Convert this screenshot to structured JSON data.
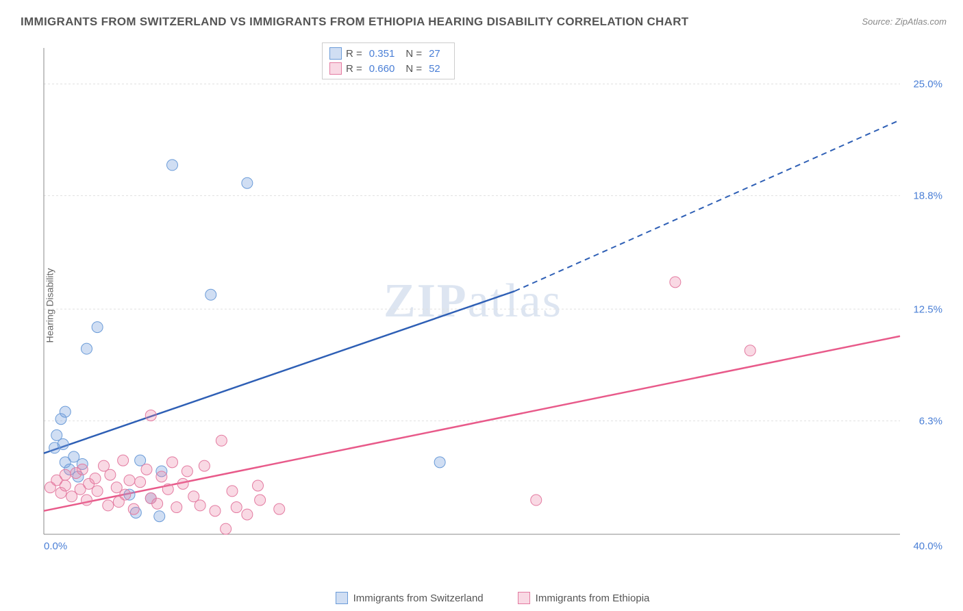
{
  "title": "IMMIGRANTS FROM SWITZERLAND VS IMMIGRANTS FROM ETHIOPIA HEARING DISABILITY CORRELATION CHART",
  "source": "Source: ZipAtlas.com",
  "ylabel": "Hearing Disability",
  "watermark": "ZIPatlas",
  "chart": {
    "type": "scatter",
    "background_color": "#ffffff",
    "grid_color": "#e0e0e0",
    "axis_color": "#888888",
    "text_color": "#666666",
    "tick_label_color": "#4a7fd6",
    "xlim": [
      0,
      40
    ],
    "ylim": [
      0,
      27
    ],
    "xtick_min_label": "0.0%",
    "xtick_max_label": "40.0%",
    "ytick_labels": [
      "6.3%",
      "12.5%",
      "18.8%",
      "25.0%"
    ],
    "ytick_values": [
      6.3,
      12.5,
      18.8,
      25.0
    ],
    "marker_radius": 8,
    "marker_stroke_width": 1,
    "line_width": 2.5,
    "series": [
      {
        "name": "Immigrants from Switzerland",
        "color_fill": "rgba(120,160,220,0.35)",
        "color_stroke": "#6a9bd8",
        "line_color": "#2e5fb5",
        "r": 0.351,
        "n": 27,
        "trend_start": [
          0,
          4.5
        ],
        "trend_solid_end": [
          22,
          13.5
        ],
        "trend_dash_end": [
          40,
          23.0
        ],
        "points": [
          [
            0.5,
            4.8
          ],
          [
            0.6,
            5.5
          ],
          [
            0.8,
            6.4
          ],
          [
            0.9,
            5.0
          ],
          [
            1.0,
            4.0
          ],
          [
            1.0,
            6.8
          ],
          [
            1.2,
            3.6
          ],
          [
            1.4,
            4.3
          ],
          [
            1.6,
            3.2
          ],
          [
            1.8,
            3.9
          ],
          [
            2.0,
            10.3
          ],
          [
            2.5,
            11.5
          ],
          [
            4.0,
            2.2
          ],
          [
            4.3,
            1.2
          ],
          [
            4.5,
            4.1
          ],
          [
            5.0,
            2.0
          ],
          [
            5.4,
            1.0
          ],
          [
            5.5,
            3.5
          ],
          [
            6.0,
            20.5
          ],
          [
            7.8,
            13.3
          ],
          [
            9.5,
            19.5
          ],
          [
            18.5,
            4.0
          ]
        ]
      },
      {
        "name": "Immigrants from Ethiopia",
        "color_fill": "rgba(235,130,165,0.30)",
        "color_stroke": "#e37aa0",
        "line_color": "#e85a8a",
        "r": 0.66,
        "n": 52,
        "trend_start": [
          0,
          1.3
        ],
        "trend_solid_end": [
          40,
          11.0
        ],
        "trend_dash_end": null,
        "points": [
          [
            0.3,
            2.6
          ],
          [
            0.6,
            3.0
          ],
          [
            0.8,
            2.3
          ],
          [
            1.0,
            3.3
          ],
          [
            1.0,
            2.7
          ],
          [
            1.3,
            2.1
          ],
          [
            1.5,
            3.4
          ],
          [
            1.7,
            2.5
          ],
          [
            1.8,
            3.6
          ],
          [
            2.0,
            1.9
          ],
          [
            2.1,
            2.8
          ],
          [
            2.4,
            3.1
          ],
          [
            2.5,
            2.4
          ],
          [
            2.8,
            3.8
          ],
          [
            3.0,
            1.6
          ],
          [
            3.1,
            3.3
          ],
          [
            3.4,
            2.6
          ],
          [
            3.5,
            1.8
          ],
          [
            3.7,
            4.1
          ],
          [
            3.8,
            2.2
          ],
          [
            4.0,
            3.0
          ],
          [
            4.2,
            1.4
          ],
          [
            4.5,
            2.9
          ],
          [
            4.8,
            3.6
          ],
          [
            5.0,
            6.6
          ],
          [
            5.0,
            2.0
          ],
          [
            5.3,
            1.7
          ],
          [
            5.5,
            3.2
          ],
          [
            5.8,
            2.5
          ],
          [
            6.0,
            4.0
          ],
          [
            6.2,
            1.5
          ],
          [
            6.5,
            2.8
          ],
          [
            6.7,
            3.5
          ],
          [
            7.0,
            2.1
          ],
          [
            7.3,
            1.6
          ],
          [
            7.5,
            3.8
          ],
          [
            8.0,
            1.3
          ],
          [
            8.3,
            5.2
          ],
          [
            8.5,
            0.3
          ],
          [
            8.8,
            2.4
          ],
          [
            9.0,
            1.5
          ],
          [
            9.5,
            1.1
          ],
          [
            10.0,
            2.7
          ],
          [
            10.1,
            1.9
          ],
          [
            11.0,
            1.4
          ],
          [
            23.0,
            1.9
          ],
          [
            29.5,
            14.0
          ],
          [
            33.0,
            10.2
          ]
        ]
      }
    ],
    "stats_legend": {
      "rows": [
        {
          "swatch_fill": "rgba(120,160,220,0.35)",
          "swatch_stroke": "#6a9bd8",
          "r": "0.351",
          "n": "27"
        },
        {
          "swatch_fill": "rgba(235,130,165,0.30)",
          "swatch_stroke": "#e37aa0",
          "r": "0.660",
          "n": "52"
        }
      ],
      "r_label": "R =",
      "n_label": "N ="
    },
    "bottom_legend": [
      {
        "swatch_fill": "rgba(120,160,220,0.35)",
        "swatch_stroke": "#6a9bd8",
        "label": "Immigrants from Switzerland"
      },
      {
        "swatch_fill": "rgba(235,130,165,0.30)",
        "swatch_stroke": "#e37aa0",
        "label": "Immigrants from Ethiopia"
      }
    ]
  }
}
